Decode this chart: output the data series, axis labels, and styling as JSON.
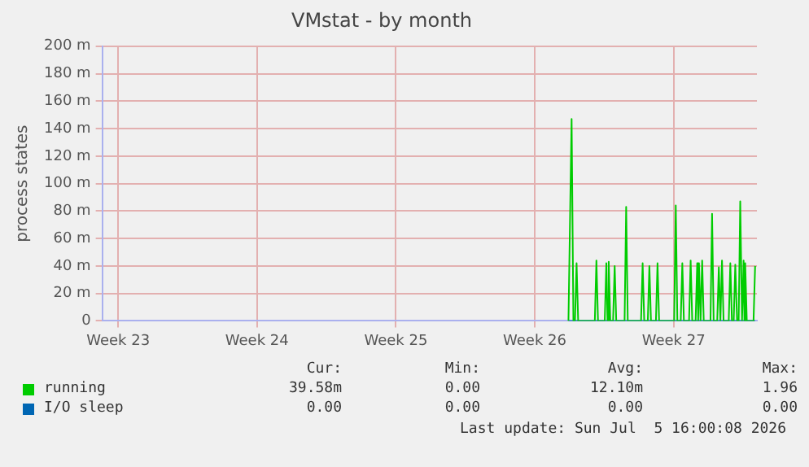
{
  "chart_data": {
    "type": "line",
    "title": "VMstat - by month",
    "ylabel": "process states",
    "xlim": [
      "2026-06-02T16:48",
      "2026-07-05T16:48"
    ],
    "xticks": [
      {
        "value": "2026-06-03T12:00",
        "label": "Week 23"
      },
      {
        "value": "2026-06-10T12:00",
        "label": "Week 24"
      },
      {
        "value": "2026-06-17T12:00",
        "label": "Week 25"
      },
      {
        "value": "2026-06-24T12:00",
        "label": "Week 26"
      },
      {
        "value": "2026-07-01T12:00",
        "label": "Week 27"
      }
    ],
    "ylim": [
      0,
      200
    ],
    "yticks": [
      0,
      {
        "value": 20,
        "label": "20 m"
      },
      {
        "value": 40,
        "label": "40 m"
      },
      {
        "value": 60,
        "label": "60 m"
      },
      {
        "value": 80,
        "label": "80 m"
      },
      {
        "value": 100,
        "label": "100 m"
      },
      {
        "value": 120,
        "label": "120 m"
      },
      {
        "value": 140,
        "label": "140 m"
      },
      {
        "value": 160,
        "label": "160 m"
      },
      {
        "value": 180,
        "label": "180 m"
      },
      {
        "value": 200,
        "label": "200 m"
      }
    ],
    "grid": true,
    "legend": "bottom",
    "marker": "none",
    "line_style": "solid",
    "series": [
      {
        "name": "running",
        "color": "#00cc00",
        "x": [
          "2026-06-26T04:48",
          "2026-06-26T08:38",
          "2026-06-26T10:48",
          "2026-06-26T12:43",
          "2026-06-26T14:38",
          "2026-06-26T16:34",
          "2026-06-27T12:43",
          "2026-06-27T14:38",
          "2026-06-27T16:34",
          "2026-06-28T00:43",
          "2026-06-28T02:38",
          "2026-06-28T04:05",
          "2026-06-28T05:31",
          "2026-06-28T07:26",
          "2026-06-28T10:48",
          "2026-06-28T12:43",
          "2026-06-28T14:38",
          "2026-06-29T00:43",
          "2026-06-29T02:38",
          "2026-06-29T04:34",
          "2026-06-29T20:38",
          "2026-06-29T22:34",
          "2026-06-30T00:29",
          "2026-06-30T04:48",
          "2026-06-30T06:43",
          "2026-06-30T08:38",
          "2026-06-30T14:38",
          "2026-06-30T16:34",
          "2026-06-30T18:29",
          "2026-07-01T12:43",
          "2026-07-01T14:38",
          "2026-07-01T16:34",
          "2026-07-01T20:38",
          "2026-07-01T22:34",
          "2026-07-02T00:29",
          "2026-07-02T06:43",
          "2026-07-02T08:38",
          "2026-07-02T10:34",
          "2026-07-02T14:38",
          "2026-07-02T16:34",
          "2026-07-02T17:46",
          "2026-07-02T18:43",
          "2026-07-02T20:38",
          "2026-07-02T22:34",
          "2026-07-03T00:29",
          "2026-07-03T08:38",
          "2026-07-03T10:34",
          "2026-07-03T12:29",
          "2026-07-03T16:48",
          "2026-07-03T18:43",
          "2026-07-03T20:38",
          "2026-07-03T22:34",
          "2026-07-04T00:29",
          "2026-07-04T06:43",
          "2026-07-04T08:38",
          "2026-07-04T10:34",
          "2026-07-04T12:43",
          "2026-07-04T14:38",
          "2026-07-04T16:48",
          "2026-07-04T18:43",
          "2026-07-04T20:38",
          "2026-07-04T22:48",
          "2026-07-05T00:43",
          "2026-07-05T01:41",
          "2026-07-05T02:38",
          "2026-07-05T04:34",
          "2026-07-05T12:43",
          "2026-07-05T14:38"
        ],
        "values": [
          0,
          147,
          0,
          0,
          42,
          0,
          0,
          44,
          0,
          0,
          42,
          0,
          43,
          0,
          0,
          40,
          0,
          0,
          83,
          0,
          0,
          42,
          0,
          0,
          40,
          0,
          0,
          42,
          0,
          0,
          84,
          0,
          0,
          42,
          0,
          0,
          44,
          0,
          0,
          42,
          0,
          42,
          0,
          44,
          0,
          0,
          78,
          0,
          0,
          39,
          0,
          44,
          0,
          0,
          42,
          0,
          0,
          41,
          0,
          0,
          87,
          0,
          44,
          0,
          42,
          0,
          0,
          40
        ]
      },
      {
        "name": "I/O sleep",
        "color": "#0066b3",
        "x": [
          "2026-06-26T04:48",
          "2026-07-05T14:38"
        ],
        "values": [
          0,
          0
        ]
      }
    ],
    "annotations": [
      "Cur:",
      "Min:",
      "Avg:",
      "Max:",
      "39.58m",
      "0.00",
      "12.10m",
      "1.96",
      "0.00",
      "0.00",
      "0.00",
      "0.00",
      "Last update: Sun Jul  5 16:00:08 2026"
    ]
  }
}
